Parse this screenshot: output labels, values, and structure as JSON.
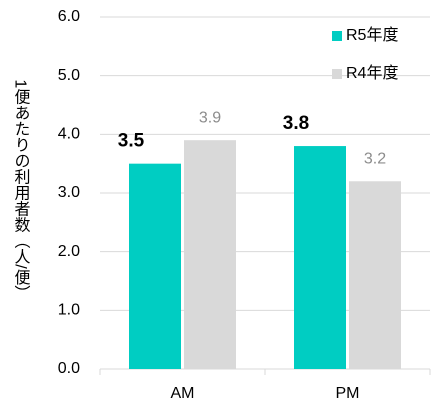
{
  "chart_data": {
    "type": "bar",
    "y_label": "1便あたりの利用者数（人/便）",
    "categories": [
      "AM",
      "PM"
    ],
    "series": [
      {
        "name": "R5年度",
        "color": "#00cdc2",
        "values": [
          3.5,
          3.8
        ]
      },
      {
        "name": "R4年度",
        "color": "#d9d9d9",
        "values": [
          3.9,
          3.2
        ]
      }
    ],
    "ylim": [
      0,
      6
    ],
    "yticks": [
      {
        "value": 0,
        "label": "0.0"
      },
      {
        "value": 1,
        "label": "1.0"
      },
      {
        "value": 2,
        "label": "2.0"
      },
      {
        "value": 3,
        "label": "3.0"
      },
      {
        "value": 4,
        "label": "4.0"
      },
      {
        "value": 5,
        "label": "5.0"
      },
      {
        "value": 6,
        "label": "6.0"
      }
    ],
    "grid": true,
    "legend": "top-right"
  }
}
